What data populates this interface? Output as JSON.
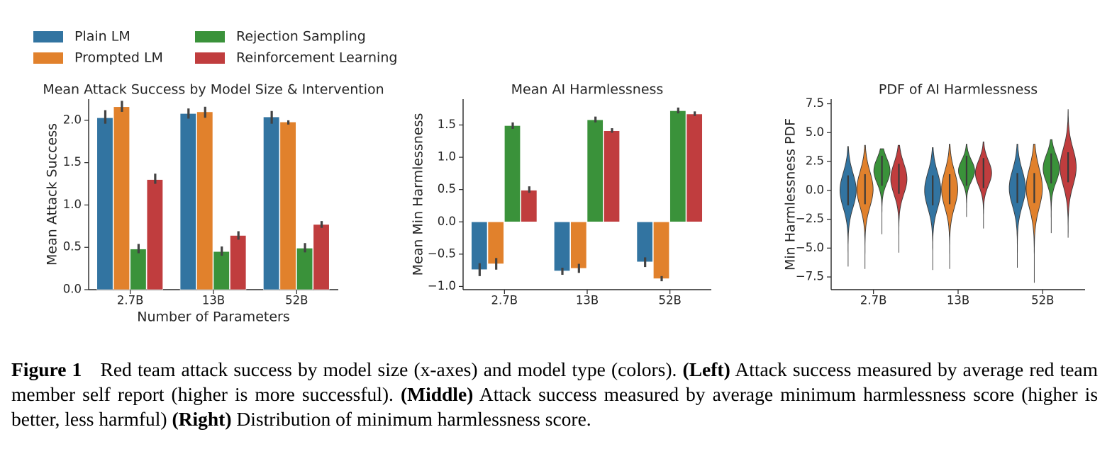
{
  "legend": {
    "items": [
      {
        "label": "Plain LM",
        "color": "#3274a1"
      },
      {
        "label": "Prompted LM",
        "color": "#e1812c"
      },
      {
        "label": "Rejection Sampling",
        "color": "#3a923a"
      },
      {
        "label": "Reinforcement Learning",
        "color": "#c03d3e"
      }
    ]
  },
  "chart_data": [
    {
      "type": "bar",
      "title": "Mean Attack Success by Model Size & Intervention",
      "xlabel": "Number of Parameters",
      "ylabel": "Mean Attack Success",
      "categories": [
        "2.7B",
        "13B",
        "52B"
      ],
      "ylim": [
        0,
        2.25
      ],
      "yticks": [
        0.0,
        0.5,
        1.0,
        1.5,
        2.0
      ],
      "ytick_labels": [
        "0.0",
        "0.5",
        "1.0",
        "1.5",
        "2.0"
      ],
      "series": [
        {
          "name": "Plain LM",
          "values": [
            2.03,
            2.08,
            2.04
          ],
          "err_low": [
            1.96,
            2.02,
            1.96
          ],
          "err_high": [
            2.12,
            2.14,
            2.11
          ]
        },
        {
          "name": "Prompted LM",
          "values": [
            2.16,
            2.1,
            1.98
          ],
          "err_low": [
            2.1,
            2.03,
            1.95
          ],
          "err_high": [
            2.23,
            2.16,
            2.0
          ]
        },
        {
          "name": "Rejection Sampling",
          "values": [
            0.48,
            0.45,
            0.49
          ],
          "err_low": [
            0.43,
            0.4,
            0.44
          ],
          "err_high": [
            0.54,
            0.51,
            0.55
          ]
        },
        {
          "name": "Reinforcement Learning",
          "values": [
            1.3,
            0.64,
            0.77
          ],
          "err_low": [
            1.25,
            0.59,
            0.73
          ],
          "err_high": [
            1.37,
            0.69,
            0.81
          ]
        }
      ]
    },
    {
      "type": "bar",
      "title": "Mean AI Harmlessness",
      "xlabel": "",
      "ylabel": "Mean Min Harmlessness",
      "categories": [
        "2.7B",
        "13B",
        "52B"
      ],
      "ylim": [
        -1.05,
        1.9
      ],
      "yticks": [
        -1.0,
        -0.5,
        0.0,
        0.5,
        1.0,
        1.5
      ],
      "ytick_labels": [
        "−1.0",
        "−0.5",
        "0.0",
        "0.5",
        "1.0",
        "1.5"
      ],
      "series": [
        {
          "name": "Plain LM",
          "values": [
            -0.74,
            -0.76,
            -0.62
          ],
          "err_low": [
            -0.84,
            -0.82,
            -0.7
          ],
          "err_high": [
            -0.64,
            -0.71,
            -0.55
          ]
        },
        {
          "name": "Prompted LM",
          "values": [
            -0.65,
            -0.72,
            -0.88
          ],
          "err_low": [
            -0.74,
            -0.79,
            -0.92
          ],
          "err_high": [
            -0.56,
            -0.65,
            -0.84
          ]
        },
        {
          "name": "Rejection Sampling",
          "values": [
            1.49,
            1.58,
            1.72
          ],
          "err_low": [
            1.44,
            1.54,
            1.68
          ],
          "err_high": [
            1.54,
            1.63,
            1.77
          ]
        },
        {
          "name": "Reinforcement Learning",
          "values": [
            0.49,
            1.41,
            1.67
          ],
          "err_low": [
            0.45,
            1.38,
            1.64
          ],
          "err_high": [
            0.55,
            1.45,
            1.71
          ]
        }
      ]
    },
    {
      "type": "violin",
      "title": "PDF of AI Harmlessness",
      "xlabel": "",
      "ylabel": "Min Harmlessness PDF",
      "categories": [
        "2.7B",
        "13B",
        "52B"
      ],
      "ylim": [
        -8.6,
        7.9
      ],
      "yticks": [
        -7.5,
        -5.0,
        -2.5,
        0.0,
        2.5,
        5.0,
        7.5
      ],
      "ytick_labels": [
        "−7.5",
        "−5.0",
        "−2.5",
        "0.0",
        "2.5",
        "5.0",
        "7.5"
      ],
      "series": [
        {
          "name": "Plain LM",
          "min": [
            -6.6,
            -6.9,
            -6.7
          ],
          "max": [
            3.8,
            3.7,
            4.0
          ],
          "center": [
            0.0,
            0.0,
            0.2
          ]
        },
        {
          "name": "Prompted LM",
          "min": [
            -6.8,
            -6.8,
            -8.0
          ],
          "max": [
            3.9,
            4.0,
            4.0
          ],
          "center": [
            0.1,
            0.1,
            0.2
          ]
        },
        {
          "name": "Rejection Sampling",
          "min": [
            -3.8,
            -2.3,
            -3.7
          ],
          "max": [
            3.6,
            4.0,
            4.4
          ],
          "center": [
            1.7,
            1.7,
            1.9
          ]
        },
        {
          "name": "Reinforcement Learning",
          "min": [
            -5.4,
            -3.3,
            -4.1
          ],
          "max": [
            3.9,
            4.2,
            7.0
          ],
          "center": [
            1.0,
            1.5,
            2.0
          ]
        }
      ]
    }
  ],
  "caption": {
    "label": "Figure 1",
    "s1": "Red team attack success by model size (x-axes) and model type (colors).",
    "left_tag": "(Left)",
    "s2": "Attack success measured by average red team member self report (higher is more successful).",
    "middle_tag": "(Middle)",
    "s3": "Attack success measured by average minimum harmlessness score (higher is better, less harmful)",
    "right_tag": "(Right)",
    "s4": "Distribution of minimum harmlessness score."
  }
}
